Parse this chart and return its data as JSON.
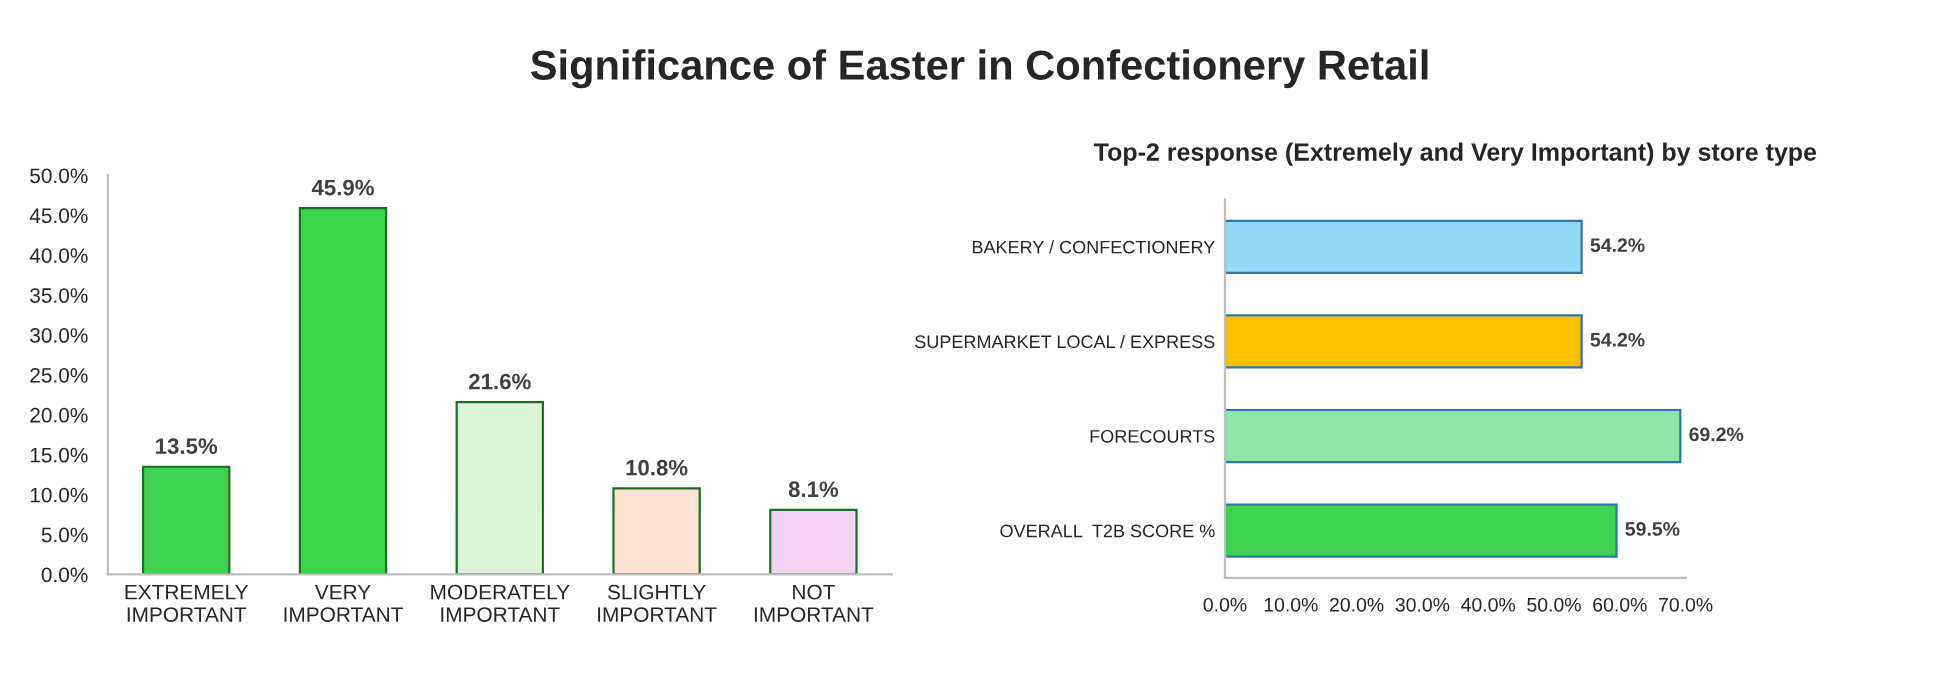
{
  "chart_data": [
    {
      "type": "bar",
      "title": "Significance of Easter in Confectionery Retail",
      "categories": [
        "EXTREMELY\nIMPORTANT",
        "VERY\nIMPORTANT",
        "MODERATELY\nIMPORTANT",
        "SLIGHTLY\nIMPORTANT",
        "NOT\nIMPORTANT"
      ],
      "values": [
        13.5,
        45.9,
        21.6,
        10.8,
        8.1
      ],
      "colors": [
        "#3fd24f",
        "#3ad44a",
        "#dcf3d8",
        "#fde2d6",
        "#f2d2f2"
      ],
      "value_labels": [
        "13.5%",
        "45.9%",
        "21.6%",
        "10.8%",
        "8.1%"
      ],
      "ylim": [
        0,
        50
      ],
      "yticks": [
        {
          "value": 0,
          "label": "0.0%"
        },
        {
          "value": 5,
          "label": "5.0%"
        },
        {
          "value": 10,
          "label": "10.0%"
        },
        {
          "value": 15,
          "label": "15.0%"
        },
        {
          "value": 20,
          "label": "20.0%"
        },
        {
          "value": 25,
          "label": "25.0%"
        },
        {
          "value": 30,
          "label": "30.0%"
        },
        {
          "value": 35,
          "label": "35.0%"
        },
        {
          "value": 40,
          "label": "40.0%"
        },
        {
          "value": 45,
          "label": "45.0%"
        },
        {
          "value": 50,
          "label": "50.0%"
        }
      ],
      "grid": false
    },
    {
      "type": "bar",
      "orientation": "horizontal",
      "title": "Top-2 response (Extremely and Very Important) by store type",
      "categories": [
        "BAKERY / CONFECTIONERY",
        "SUPERMARKET LOCAL / EXPRESS",
        "FORECOURTS",
        "OVERALL  T2B SCORE %"
      ],
      "values": [
        54.2,
        54.2,
        69.2,
        59.5
      ],
      "colors": [
        "#93daf5",
        "#ffc000",
        "#8ae6a2",
        "#3fd24f"
      ],
      "value_labels": [
        "54.2%",
        "54.2%",
        "69.2%",
        "59.5%"
      ],
      "xlim": [
        0,
        70
      ],
      "xticks": [
        {
          "value": 0,
          "label": "0.0%"
        },
        {
          "value": 10,
          "label": "10.0%"
        },
        {
          "value": 20,
          "label": "20.0%"
        },
        {
          "value": 30,
          "label": "30.0%"
        },
        {
          "value": 40,
          "label": "40.0%"
        },
        {
          "value": 50,
          "label": "50.0%"
        },
        {
          "value": 60,
          "label": "60.0%"
        },
        {
          "value": 70,
          "label": "70.0%"
        }
      ],
      "grid": false
    }
  ]
}
